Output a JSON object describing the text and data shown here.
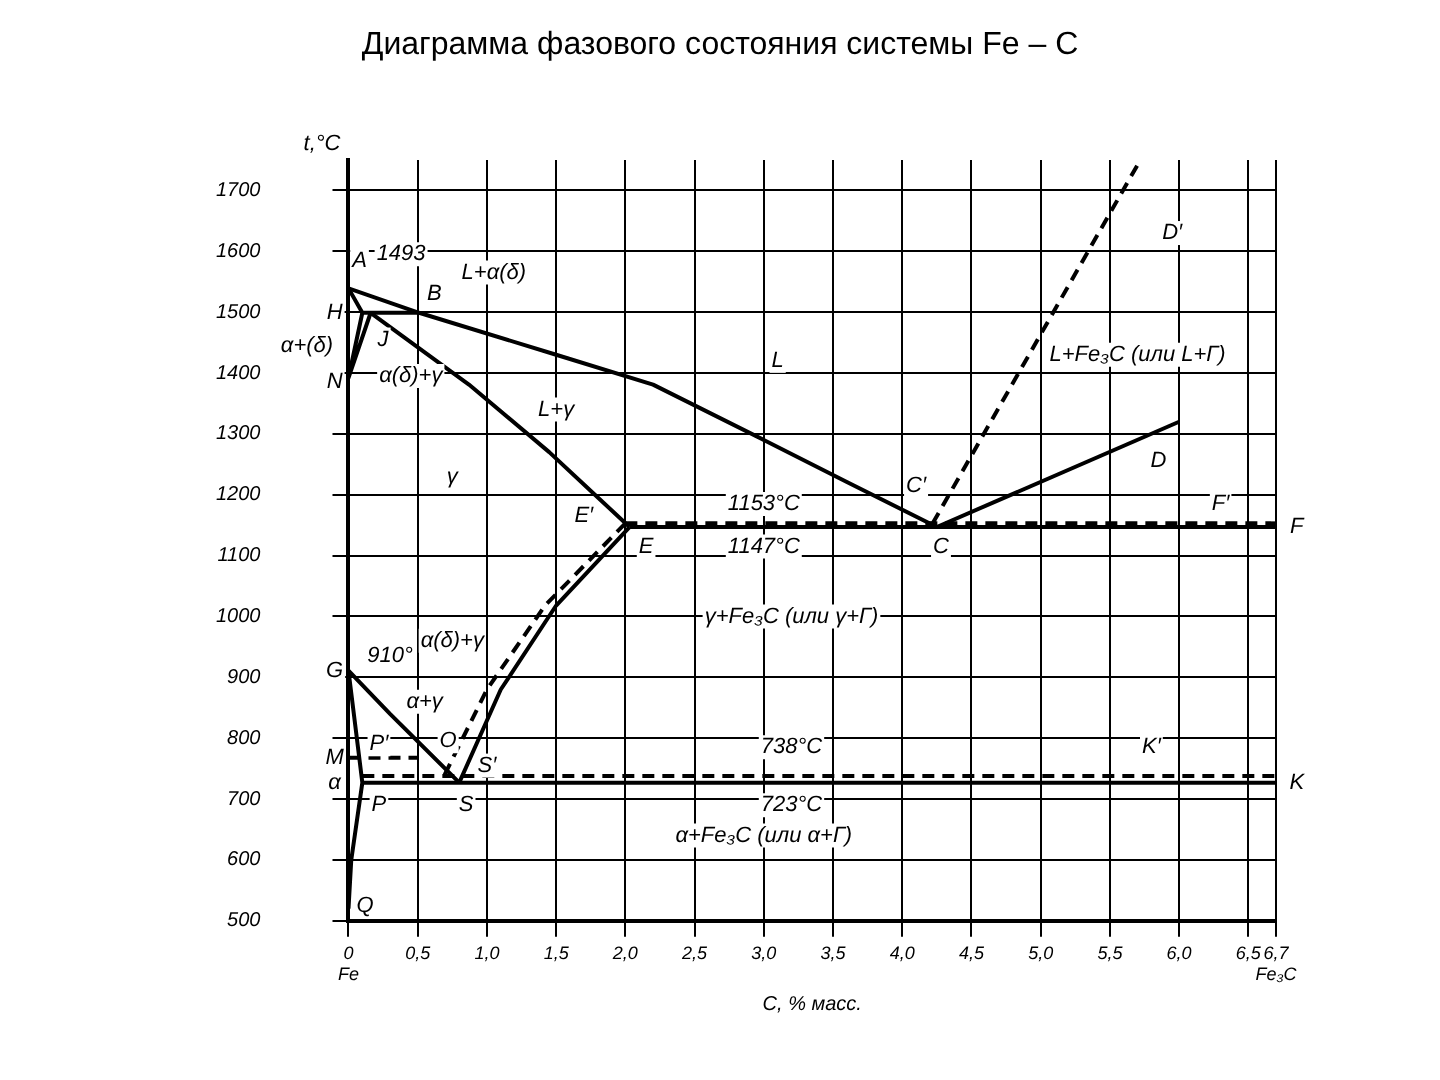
{
  "chart_data": {
    "type": "line",
    "title": "Диаграмма фазового состояния системы Fe – C",
    "xlabel": "C, % масс.",
    "ylabel": "t,°C",
    "xlim": [
      0,
      6.7
    ],
    "ylim": [
      500,
      1750
    ],
    "xticks": [
      {
        "value": 0,
        "label": "0\nFe"
      },
      {
        "value": 0.5,
        "label": "0,5"
      },
      {
        "value": 1,
        "label": "1,0"
      },
      {
        "value": 1.5,
        "label": "1,5"
      },
      {
        "value": 2,
        "label": "2,0"
      },
      {
        "value": 2.5,
        "label": "2,5"
      },
      {
        "value": 3,
        "label": "3,0"
      },
      {
        "value": 3.5,
        "label": "3,5"
      },
      {
        "value": 4,
        "label": "4,0"
      },
      {
        "value": 4.5,
        "label": "4,5"
      },
      {
        "value": 5,
        "label": "5,0"
      },
      {
        "value": 5.5,
        "label": "5,5"
      },
      {
        "value": 6,
        "label": "6,0"
      },
      {
        "value": 6.5,
        "label": "6,5"
      },
      {
        "value": 6.7,
        "label": "6,7\nFe₃C"
      }
    ],
    "yticks": [
      500,
      600,
      700,
      800,
      900,
      1000,
      1100,
      1200,
      1300,
      1400,
      1500,
      1600,
      1700
    ],
    "grid": true,
    "legend": false,
    "marker": "none",
    "line_style": "solid",
    "series": [
      {
        "color": "#000000",
        "x": [
          0,
          0.51,
          1.5,
          2.2,
          3.0,
          3.6,
          4.25
        ],
        "values": [
          1539,
          1499,
          1430,
          1381,
          1290,
          1221,
          1147
        ]
      },
      {
        "color": "#000000",
        "x": [
          4.25,
          6.0
        ],
        "values": [
          1147,
          1320
        ]
      },
      {
        "color": "#000000",
        "x": [
          0,
          0.1,
          0.51
        ],
        "values": [
          1539,
          1499,
          1499
        ]
      },
      {
        "color": "#000000",
        "x": [
          0.16,
          0.87,
          1.45,
          1.78,
          2.03
        ],
        "values": [
          1499,
          1381,
          1270,
          1200,
          1147
        ]
      },
      {
        "color": "#000000",
        "x": [
          0.1,
          0,
          0.16
        ],
        "values": [
          1499,
          1392,
          1499
        ]
      },
      {
        "color": "#000000",
        "x": [
          2.03,
          6.7
        ],
        "values": [
          1147,
          1147
        ]
      },
      {
        "color": "#000000",
        "line_style": "dashed",
        "x": [
          2.0,
          6.7
        ],
        "values": [
          1153,
          1153
        ]
      },
      {
        "color": "#000000",
        "line_style": "dashed",
        "x": [
          4.22,
          5.72
        ],
        "values": [
          1153,
          1750
        ]
      },
      {
        "color": "#000000",
        "x": [
          2.03,
          1.5,
          1.1,
          0.8
        ],
        "values": [
          1147,
          1018,
          880,
          727
        ]
      },
      {
        "color": "#000000",
        "line_style": "dashed",
        "x": [
          2.0,
          1.42,
          1.0,
          0.69
        ],
        "values": [
          1153,
          1018,
          880,
          738
        ]
      },
      {
        "color": "#000000",
        "x": [
          0,
          0.3,
          0.8
        ],
        "values": [
          911,
          840,
          727
        ]
      },
      {
        "color": "#000000",
        "x": [
          0,
          0.1,
          0.02,
          0
        ],
        "values": [
          911,
          727,
          600,
          520
        ]
      },
      {
        "color": "#000000",
        "x": [
          0.1,
          6.7
        ],
        "values": [
          727,
          727
        ]
      },
      {
        "color": "#000000",
        "line_style": "dashed",
        "x": [
          0.1,
          6.7
        ],
        "values": [
          738,
          738
        ]
      },
      {
        "color": "#000000",
        "line_style": "dashed",
        "x": [
          0,
          0.5
        ],
        "values": [
          768,
          768
        ]
      }
    ],
    "annotations": [
      "A",
      "1493",
      "L+α(δ)",
      "B",
      "H",
      "α+(δ)",
      "J",
      "α(δ)+γ",
      "N",
      "L",
      "L+γ",
      "γ",
      "E′",
      "E",
      "1153°C",
      "1147°C",
      "C′",
      "C",
      "D",
      "D′",
      "F′",
      "F",
      "L+Fe₃C (или L+Г)",
      "γ+Fe₃C (или γ+Г)",
      "G",
      "910°",
      "α(δ)+γ",
      "α+γ",
      "M",
      "α",
      "P′",
      "O",
      "S′",
      "S",
      "P",
      "Q",
      "738°C",
      "723°C",
      "K′",
      "K",
      "α+Fe₃C (или α+Г)"
    ]
  }
}
